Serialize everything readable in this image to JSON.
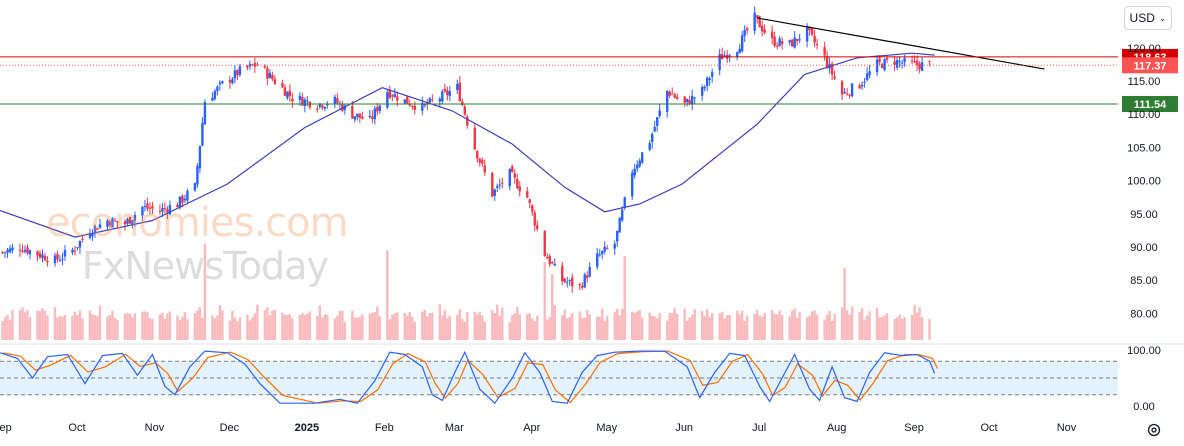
{
  "currency": "USD",
  "watermark": {
    "line1": "economies.com",
    "line2": "FxNewsToday"
  },
  "colors": {
    "up": "#2962ff",
    "down": "#f23645",
    "ma": "#3f3fbf",
    "trend": "#000000",
    "resistance": "#d50000",
    "support": "#2e7d32",
    "current": "#ff5252",
    "volume": "#f7a9ad",
    "stoch_k": "#2962ff",
    "stoch_d": "#ff6d00",
    "stoch_band": "#e3f2fd"
  },
  "chart_data": [
    {
      "type": "candlestick",
      "x_axis": {
        "type": "time",
        "start": "2024-09-01",
        "end": "2025-11-20",
        "tick_labels": [
          "Sep",
          "Oct",
          "Nov",
          "Dec",
          "2025",
          "Feb",
          "Mar",
          "Apr",
          "May",
          "Jun",
          "Jul",
          "Aug",
          "Sep",
          "Oct",
          "Nov"
        ],
        "tick_dates": [
          "2024-09-01",
          "2024-10-01",
          "2024-11-01",
          "2024-12-01",
          "2025-01-01",
          "2025-02-01",
          "2025-03-01",
          "2025-04-01",
          "2025-05-01",
          "2025-06-01",
          "2025-07-01",
          "2025-08-01",
          "2025-09-01",
          "2025-10-01",
          "2025-11-01"
        ]
      },
      "y_axis": {
        "ylim": [
          76,
          126
        ],
        "tick_values": [
          80,
          85,
          90,
          95,
          100,
          105,
          110,
          115,
          120
        ],
        "tick_labels": [
          "80.00",
          "85.00",
          "90.00",
          "95.00",
          "100.00",
          "105.00",
          "110.00",
          "115.00",
          "120.00"
        ]
      },
      "close_path": [
        [
          "2024-09-02",
          89.2
        ],
        [
          "2024-09-09",
          90.0
        ],
        [
          "2024-09-16",
          89.0
        ],
        [
          "2024-09-23",
          88.0
        ],
        [
          "2024-09-30",
          89.5
        ],
        [
          "2024-10-07",
          92.5
        ],
        [
          "2024-10-14",
          94.0
        ],
        [
          "2024-10-21",
          93.5
        ],
        [
          "2024-10-28",
          96.0
        ],
        [
          "2024-11-04",
          95.5
        ],
        [
          "2024-11-11",
          96.5
        ],
        [
          "2024-11-18",
          99.0
        ],
        [
          "2024-11-22",
          112.0
        ],
        [
          "2024-11-29",
          114.5
        ],
        [
          "2024-12-06",
          116.5
        ],
        [
          "2024-12-13",
          117.5
        ],
        [
          "2024-12-20",
          115.0
        ],
        [
          "2024-12-27",
          112.5
        ],
        [
          "2025-01-06",
          111.5
        ],
        [
          "2025-01-13",
          112.0
        ],
        [
          "2025-01-20",
          110.0
        ],
        [
          "2025-01-27",
          109.0
        ],
        [
          "2025-02-03",
          113.5
        ],
        [
          "2025-02-10",
          112.0
        ],
        [
          "2025-02-17",
          111.0
        ],
        [
          "2025-02-24",
          112.5
        ],
        [
          "2025-03-03",
          114.0
        ],
        [
          "2025-03-10",
          105.0
        ],
        [
          "2025-03-17",
          98.0
        ],
        [
          "2025-03-24",
          101.0
        ],
        [
          "2025-03-31",
          97.5
        ],
        [
          "2025-04-07",
          89.0
        ],
        [
          "2025-04-14",
          85.0
        ],
        [
          "2025-04-21",
          84.0
        ],
        [
          "2025-04-28",
          88.5
        ],
        [
          "2025-05-05",
          90.5
        ],
        [
          "2025-05-12",
          101.5
        ],
        [
          "2025-05-19",
          106.0
        ],
        [
          "2025-05-26",
          113.5
        ],
        [
          "2025-06-02",
          111.5
        ],
        [
          "2025-06-09",
          113.5
        ],
        [
          "2025-06-16",
          118.5
        ],
        [
          "2025-06-23",
          120.0
        ],
        [
          "2025-06-30",
          124.5
        ],
        [
          "2025-07-07",
          121.0
        ],
        [
          "2025-07-14",
          120.5
        ],
        [
          "2025-07-21",
          122.5
        ],
        [
          "2025-07-28",
          118.5
        ],
        [
          "2025-08-04",
          113.0
        ],
        [
          "2025-08-11",
          114.5
        ],
        [
          "2025-08-18",
          117.5
        ],
        [
          "2025-08-25",
          118.0
        ],
        [
          "2025-09-01",
          117.5
        ],
        [
          "2025-09-08",
          117.4
        ]
      ],
      "moving_average": [
        [
          "2024-09-01",
          95.5
        ],
        [
          "2024-10-01",
          91.5
        ],
        [
          "2024-11-01",
          94.0
        ],
        [
          "2024-12-01",
          99.5
        ],
        [
          "2025-01-01",
          108.0
        ],
        [
          "2025-02-01",
          114.0
        ],
        [
          "2025-03-01",
          110.5
        ],
        [
          "2025-03-25",
          105.5
        ],
        [
          "2025-04-15",
          99.0
        ],
        [
          "2025-05-01",
          95.3
        ],
        [
          "2025-05-15",
          96.5
        ],
        [
          "2025-06-01",
          99.5
        ],
        [
          "2025-07-01",
          108.5
        ],
        [
          "2025-07-20",
          116.0
        ],
        [
          "2025-08-10",
          118.5
        ],
        [
          "2025-09-01",
          119.2
        ],
        [
          "2025-09-10",
          118.9
        ]
      ],
      "trendline": [
        [
          "2025-07-01",
          124.5
        ],
        [
          "2025-10-24",
          116.8
        ]
      ],
      "horizontal_levels": [
        {
          "value": 118.63,
          "label": "118.63",
          "kind": "resistance"
        },
        {
          "value": 117.37,
          "label": "117.37",
          "kind": "current"
        },
        {
          "value": 111.54,
          "label": "111.54",
          "kind": "support"
        }
      ],
      "volume": {
        "scale_max": 40,
        "base": [
          6,
          7,
          8,
          6,
          7,
          8,
          9,
          7,
          8,
          6,
          7,
          8,
          9,
          7,
          6,
          8,
          7
        ],
        "spikes": [
          [
            "2024-11-22",
            32
          ],
          [
            "2025-02-03",
            30
          ],
          [
            "2025-04-07",
            26
          ],
          [
            "2025-04-10",
            22
          ],
          [
            "2025-05-09",
            28
          ],
          [
            "2025-08-05",
            24
          ]
        ]
      }
    },
    {
      "type": "line",
      "name": "stochastic",
      "y_axis": {
        "ylim": [
          0,
          100
        ],
        "tick_values": [
          0,
          100
        ],
        "tick_labels": [
          "0.00",
          "100.00"
        ],
        "upper_band": 80,
        "lower_band": 20
      },
      "k_path": [
        [
          "2024-09-01",
          95
        ],
        [
          "2024-09-08",
          85
        ],
        [
          "2024-09-14",
          50
        ],
        [
          "2024-09-20",
          88
        ],
        [
          "2024-09-28",
          92
        ],
        [
          "2024-10-05",
          40
        ],
        [
          "2024-10-12",
          90
        ],
        [
          "2024-10-20",
          94
        ],
        [
          "2024-10-26",
          55
        ],
        [
          "2024-11-01",
          92
        ],
        [
          "2024-11-06",
          35
        ],
        [
          "2024-11-10",
          20
        ],
        [
          "2024-11-16",
          70
        ],
        [
          "2024-11-22",
          98
        ],
        [
          "2024-12-01",
          95
        ],
        [
          "2024-12-08",
          75
        ],
        [
          "2024-12-14",
          40
        ],
        [
          "2024-12-22",
          5
        ],
        [
          "2025-01-05",
          5
        ],
        [
          "2025-01-15",
          12
        ],
        [
          "2025-01-22",
          5
        ],
        [
          "2025-01-29",
          45
        ],
        [
          "2025-02-04",
          96
        ],
        [
          "2025-02-10",
          92
        ],
        [
          "2025-02-17",
          70
        ],
        [
          "2025-02-21",
          20
        ],
        [
          "2025-02-25",
          10
        ],
        [
          "2025-03-02",
          60
        ],
        [
          "2025-03-06",
          96
        ],
        [
          "2025-03-12",
          30
        ],
        [
          "2025-03-18",
          5
        ],
        [
          "2025-03-25",
          50
        ],
        [
          "2025-03-30",
          95
        ],
        [
          "2025-04-05",
          60
        ],
        [
          "2025-04-10",
          8
        ],
        [
          "2025-04-16",
          5
        ],
        [
          "2025-04-22",
          60
        ],
        [
          "2025-04-28",
          90
        ],
        [
          "2025-05-05",
          96
        ],
        [
          "2025-05-15",
          98
        ],
        [
          "2025-05-25",
          98
        ],
        [
          "2025-06-03",
          70
        ],
        [
          "2025-06-08",
          15
        ],
        [
          "2025-06-14",
          60
        ],
        [
          "2025-06-20",
          94
        ],
        [
          "2025-06-26",
          90
        ],
        [
          "2025-07-02",
          35
        ],
        [
          "2025-07-06",
          8
        ],
        [
          "2025-07-11",
          50
        ],
        [
          "2025-07-16",
          92
        ],
        [
          "2025-07-22",
          30
        ],
        [
          "2025-07-26",
          10
        ],
        [
          "2025-07-31",
          70
        ],
        [
          "2025-08-05",
          15
        ],
        [
          "2025-08-10",
          8
        ],
        [
          "2025-08-15",
          60
        ],
        [
          "2025-08-21",
          95
        ],
        [
          "2025-08-28",
          90
        ],
        [
          "2025-09-03",
          92
        ],
        [
          "2025-09-08",
          80
        ],
        [
          "2025-09-10",
          58
        ]
      ]
    }
  ]
}
